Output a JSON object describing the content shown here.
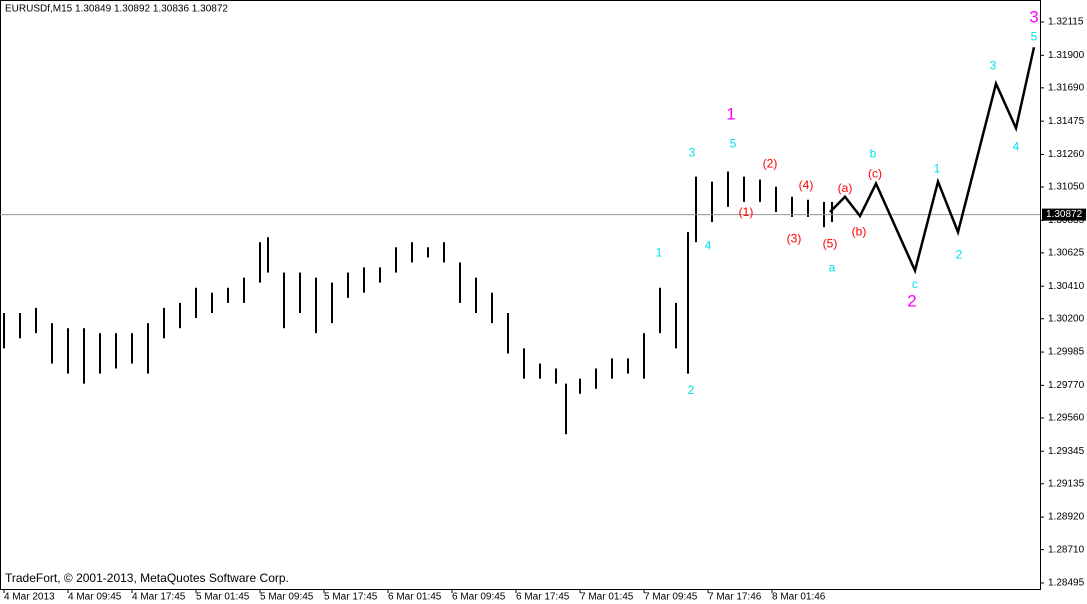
{
  "chart_data": {
    "type": "ohlc",
    "title": "EURUSDf,M15  1.30849 1.30892 1.30836 1.30872",
    "footer": "TradeFort, © 2001-2013, MetaQuotes Software Corp.",
    "color": "#000000",
    "xlim": [
      -2,
      518
    ],
    "ylim": [
      1.28456,
      1.32244
    ],
    "yticks": [
      {
        "value": 1.32115,
        "label": "1.32115"
      },
      {
        "value": 1.319,
        "label": "1.31900"
      },
      {
        "value": 1.3169,
        "label": "1.31690"
      },
      {
        "value": 1.31475,
        "label": "1.31475"
      },
      {
        "value": 1.3126,
        "label": "1.31260"
      },
      {
        "value": 1.3105,
        "label": "1.31050"
      },
      {
        "value": 1.30835,
        "label": "1.30835"
      },
      {
        "value": 1.30625,
        "label": "1.30625"
      },
      {
        "value": 1.3041,
        "label": "1.30410"
      },
      {
        "value": 1.302,
        "label": "1.30200"
      },
      {
        "value": 1.29985,
        "label": "1.29985"
      },
      {
        "value": 1.2977,
        "label": "1.29770"
      },
      {
        "value": 1.2956,
        "label": "1.29560"
      },
      {
        "value": 1.29345,
        "label": "1.29345"
      },
      {
        "value": 1.29135,
        "label": "1.29135"
      },
      {
        "value": 1.2892,
        "label": "1.28920"
      },
      {
        "value": 1.2871,
        "label": "1.28710"
      },
      {
        "value": 1.28495,
        "label": "1.28495"
      }
    ],
    "xticks": [
      {
        "value": 0,
        "label": "4 Mar 2013"
      },
      {
        "value": 32,
        "label": "4 Mar 09:45"
      },
      {
        "value": 64,
        "label": "4 Mar 17:45"
      },
      {
        "value": 96,
        "label": "5 Mar 01:45"
      },
      {
        "value": 128,
        "label": "5 Mar 09:45"
      },
      {
        "value": 160,
        "label": "5 Mar 17:45"
      },
      {
        "value": 192,
        "label": "6 Mar 01:45"
      },
      {
        "value": 224,
        "label": "6 Mar 09:45"
      },
      {
        "value": 256,
        "label": "6 Mar 17:45"
      },
      {
        "value": 288,
        "label": "7 Mar 01:45"
      },
      {
        "value": 320,
        "label": "7 Mar 09:45"
      },
      {
        "value": 352,
        "label": "7 Mar 17:46"
      },
      {
        "value": 384,
        "label": "8 Mar 01:46"
      }
    ],
    "last_price": 1.30872,
    "x": [
      0,
      8,
      16,
      24,
      32,
      40,
      48,
      56,
      64,
      72,
      80,
      88,
      96,
      104,
      112,
      120,
      128,
      132,
      140,
      148,
      156,
      164,
      172,
      180,
      188,
      196,
      204,
      212,
      220,
      228,
      236,
      244,
      252,
      260,
      268,
      276,
      281,
      288,
      296,
      304,
      312,
      320,
      328,
      336,
      342,
      346,
      354,
      362,
      370,
      378,
      386,
      394,
      402,
      410,
      414
    ],
    "high": [
      1.30237,
      1.30237,
      1.3027,
      1.30172,
      1.30139,
      1.30139,
      1.30107,
      1.30107,
      1.30107,
      1.30172,
      1.3027,
      1.30302,
      1.304,
      1.30368,
      1.304,
      1.30465,
      1.30694,
      1.30726,
      1.30498,
      1.30498,
      1.30465,
      1.30433,
      1.30498,
      1.30531,
      1.30531,
      1.30661,
      1.30694,
      1.30661,
      1.30694,
      1.30563,
      1.30465,
      1.30368,
      1.30237,
      1.30009,
      1.29911,
      1.29879,
      1.29781,
      1.29813,
      1.29879,
      1.29944,
      1.29944,
      1.30107,
      1.304,
      1.30302,
      1.30759,
      1.31117,
      1.31085,
      1.3115,
      1.31117,
      1.31098,
      1.31052,
      1.30987,
      1.30968,
      1.30954,
      1.30954
    ],
    "low": [
      1.30009,
      1.30074,
      1.30107,
      1.29911,
      1.29846,
      1.29781,
      1.29846,
      1.29879,
      1.29911,
      1.29846,
      1.30074,
      1.30139,
      1.30205,
      1.30237,
      1.30302,
      1.30302,
      1.30433,
      1.30498,
      1.30139,
      1.30237,
      1.30107,
      1.30172,
      1.30335,
      1.30368,
      1.30433,
      1.30498,
      1.30563,
      1.30596,
      1.30563,
      1.30302,
      1.30237,
      1.30172,
      1.29976,
      1.29813,
      1.29813,
      1.29781,
      1.29455,
      1.29716,
      1.29748,
      1.29813,
      1.29846,
      1.29813,
      1.30107,
      1.30009,
      1.29846,
      1.30694,
      1.30824,
      1.30922,
      1.30954,
      1.30954,
      1.30889,
      1.30857,
      1.30857,
      1.30791,
      1.30824
    ],
    "forecast": {
      "color": "#000000",
      "x": [
        413,
        420.5,
        428,
        436,
        455.5,
        467,
        477,
        496,
        506,
        515
      ],
      "y": [
        1.30889,
        1.30987,
        1.30863,
        1.31072,
        1.30511,
        1.31085,
        1.30759,
        1.31717,
        1.3143,
        1.31952
      ]
    },
    "wave_labels": [
      {
        "color": "#ff00ff",
        "labels": [
          {
            "text": "1",
            "x": 363.5,
            "y": 1.31515
          },
          {
            "text": "2",
            "x": 454,
            "y": 1.30309
          },
          {
            "text": "3",
            "x": 515,
            "y": 1.32141
          }
        ]
      },
      {
        "color": "#00e0e8",
        "labels": [
          {
            "text": "3",
            "x": 344,
            "y": 1.31267
          },
          {
            "text": "5",
            "x": 364.5,
            "y": 1.31326
          },
          {
            "text": "1",
            "x": 327.5,
            "y": 1.30622
          },
          {
            "text": "4",
            "x": 352,
            "y": 1.30668
          },
          {
            "text": "2",
            "x": 343.5,
            "y": 1.29735
          },
          {
            "text": "a",
            "x": 414,
            "y": 1.30524
          },
          {
            "text": "b",
            "x": 434.5,
            "y": 1.31261
          },
          {
            "text": "c",
            "x": 455.5,
            "y": 1.3042
          },
          {
            "text": "1",
            "x": 466.5,
            "y": 1.31163
          },
          {
            "text": "2",
            "x": 477.5,
            "y": 1.30609
          },
          {
            "text": "3",
            "x": 494.5,
            "y": 1.31828
          },
          {
            "text": "4",
            "x": 506,
            "y": 1.31307
          },
          {
            "text": "5",
            "x": 515,
            "y": 1.32017
          }
        ]
      },
      {
        "color": "#ff0000",
        "labels": [
          {
            "text": "(1)",
            "x": 371,
            "y": 1.30883
          },
          {
            "text": "(2)",
            "x": 383,
            "y": 1.31196
          },
          {
            "text": "(3)",
            "x": 395,
            "y": 1.30713
          },
          {
            "text": "(4)",
            "x": 401,
            "y": 1.31059
          },
          {
            "text": "(5)",
            "x": 413,
            "y": 1.30681
          },
          {
            "text": "(a)",
            "x": 420.5,
            "y": 1.31039
          },
          {
            "text": "(b)",
            "x": 427.5,
            "y": 1.30759
          },
          {
            "text": "(c)",
            "x": 435.5,
            "y": 1.31131
          }
        ]
      }
    ]
  }
}
